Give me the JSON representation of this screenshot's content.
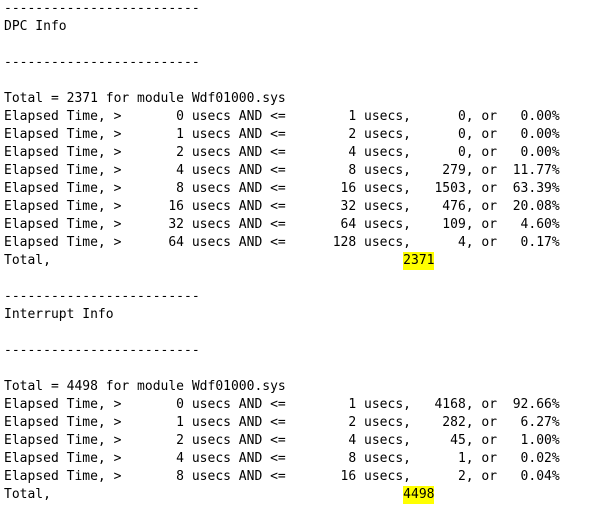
{
  "report": {
    "lines": [
      {
        "text": "-------------------------"
      },
      {
        "text": "DPC Info"
      },
      {
        "text": ""
      },
      {
        "text": "-------------------------"
      },
      {
        "text": ""
      },
      {
        "text": "Total = 2371 for module Wdf01000.sys"
      },
      {
        "text": "Elapsed Time, >       0 usecs AND <=        1 usecs,      0, or   0.00%"
      },
      {
        "text": "Elapsed Time, >       1 usecs AND <=        2 usecs,      0, or   0.00%"
      },
      {
        "text": "Elapsed Time, >       2 usecs AND <=        4 usecs,      0, or   0.00%"
      },
      {
        "text": "Elapsed Time, >       4 usecs AND <=        8 usecs,    279, or  11.77%"
      },
      {
        "text": "Elapsed Time, >       8 usecs AND <=       16 usecs,   1503, or  63.39%"
      },
      {
        "text": "Elapsed Time, >      16 usecs AND <=       32 usecs,    476, or  20.08%"
      },
      {
        "text": "Elapsed Time, >      32 usecs AND <=       64 usecs,    109, or   4.60%"
      },
      {
        "text": "Elapsed Time, >      64 usecs AND <=      128 usecs,      4, or   0.17%"
      },
      {
        "text": "Total,                                             ",
        "hl": "2371"
      },
      {
        "text": ""
      },
      {
        "text": "-------------------------"
      },
      {
        "text": "Interrupt Info"
      },
      {
        "text": ""
      },
      {
        "text": "-------------------------"
      },
      {
        "text": ""
      },
      {
        "text": "Total = 4498 for module Wdf01000.sys"
      },
      {
        "text": "Elapsed Time, >       0 usecs AND <=        1 usecs,   4168, or  92.66%"
      },
      {
        "text": "Elapsed Time, >       1 usecs AND <=        2 usecs,    282, or   6.27%"
      },
      {
        "text": "Elapsed Time, >       2 usecs AND <=        4 usecs,     45, or   1.00%"
      },
      {
        "text": "Elapsed Time, >       4 usecs AND <=        8 usecs,      1, or   0.02%"
      },
      {
        "text": "Elapsed Time, >       8 usecs AND <=       16 usecs,      2, or   0.04%"
      },
      {
        "text": "Total,                                             ",
        "hl": "4498"
      }
    ]
  },
  "colors": {
    "text": "#000000",
    "highlight": "#ffff00",
    "background": "#ffffff"
  }
}
